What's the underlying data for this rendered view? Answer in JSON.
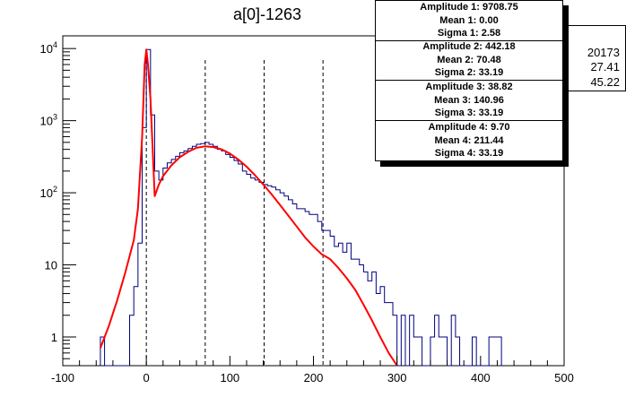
{
  "title": "a[0]-1263",
  "stats_box": {
    "values": [
      "20173",
      "27.41",
      "45.22"
    ]
  },
  "fit_box": {
    "groups": [
      [
        "Amplitude 1: 9708.75",
        "Mean 1: 0.00",
        "Sigma 1: 2.58"
      ],
      [
        "Amplitude 2: 442.18",
        "Mean 2: 70.48",
        "Sigma 2: 33.19"
      ],
      [
        "Amplitude 3: 38.82",
        "Mean 3: 140.96",
        "Sigma 3: 33.19"
      ],
      [
        "Amplitude 4: 9.70",
        "Mean 4: 211.44",
        "Sigma 4: 33.19"
      ]
    ]
  },
  "colors": {
    "histogram": "#000080",
    "fit": "#ff0000",
    "axes": "#000000"
  },
  "chart_data": {
    "type": "line",
    "title": "a[0]-1263",
    "xlabel": "",
    "ylabel": "",
    "xlim": [
      -100,
      500
    ],
    "ylim": [
      0.4,
      15000
    ],
    "yscale": "log",
    "x_ticks": [
      -100,
      0,
      100,
      200,
      300,
      400,
      500
    ],
    "y_ticks": [
      {
        "value": 1,
        "label": "1"
      },
      {
        "value": 10,
        "label": "10"
      },
      {
        "value": 100,
        "label": "10^2"
      },
      {
        "value": 1000,
        "label": "10^3"
      },
      {
        "value": 10000,
        "label": "10^4"
      }
    ],
    "vlines": [
      0,
      70.48,
      140.96,
      211.44
    ],
    "bin_width": 5,
    "histogram": {
      "name": "data",
      "bin_lefts": [
        -55,
        -50,
        -45,
        -40,
        -35,
        -30,
        -25,
        -20,
        -15,
        -10,
        -5,
        0,
        5,
        10,
        15,
        20,
        25,
        30,
        35,
        40,
        45,
        50,
        55,
        60,
        65,
        70,
        75,
        80,
        85,
        90,
        95,
        100,
        105,
        110,
        115,
        120,
        125,
        130,
        135,
        140,
        145,
        150,
        155,
        160,
        165,
        170,
        175,
        180,
        185,
        190,
        195,
        200,
        205,
        210,
        215,
        220,
        225,
        230,
        235,
        240,
        245,
        250,
        255,
        260,
        265,
        270,
        275,
        280,
        285,
        290,
        295,
        300,
        305,
        310,
        315,
        320,
        325,
        330,
        335,
        340,
        345,
        350,
        355,
        360,
        365,
        370,
        375,
        380,
        385,
        390,
        395,
        400,
        405,
        410,
        415,
        420
      ],
      "counts": [
        1,
        0,
        0,
        0,
        0,
        0,
        0,
        2,
        5,
        20,
        800,
        9700,
        1200,
        200,
        150,
        220,
        260,
        290,
        320,
        360,
        380,
        410,
        440,
        470,
        480,
        500,
        470,
        440,
        400,
        380,
        340,
        310,
        280,
        250,
        200,
        180,
        160,
        150,
        140,
        130,
        125,
        120,
        110,
        100,
        90,
        80,
        70,
        60,
        60,
        55,
        50,
        50,
        40,
        30,
        30,
        25,
        18,
        20,
        15,
        20,
        12,
        12,
        10,
        8,
        6,
        8,
        4,
        5,
        3,
        3,
        2,
        0,
        2,
        0,
        2,
        1,
        1,
        0,
        0,
        1,
        2,
        1,
        1,
        0,
        2,
        1,
        0,
        0,
        0,
        1,
        0,
        0,
        0,
        1,
        1,
        1
      ]
    },
    "fit": {
      "name": "fit",
      "x": [
        -55,
        -45,
        -35,
        -25,
        -15,
        -10,
        -5,
        -2,
        0,
        2,
        5,
        10,
        15,
        20,
        30,
        40,
        50,
        60,
        70,
        80,
        90,
        100,
        110,
        120,
        130,
        140,
        150,
        160,
        170,
        180,
        190,
        200,
        210,
        215,
        220,
        230,
        240,
        250,
        260,
        270,
        280,
        290,
        300
      ],
      "y": [
        0.7,
        1.4,
        3.2,
        8,
        22,
        60,
        600,
        6000,
        9708,
        6000,
        2000,
        90,
        130,
        170,
        240,
        310,
        370,
        420,
        440,
        430,
        400,
        350,
        290,
        230,
        175,
        130,
        95,
        68,
        48,
        34,
        24,
        18,
        14,
        13,
        12,
        9,
        6.5,
        4.5,
        2.8,
        1.7,
        1,
        0.6,
        0.35
      ]
    }
  }
}
